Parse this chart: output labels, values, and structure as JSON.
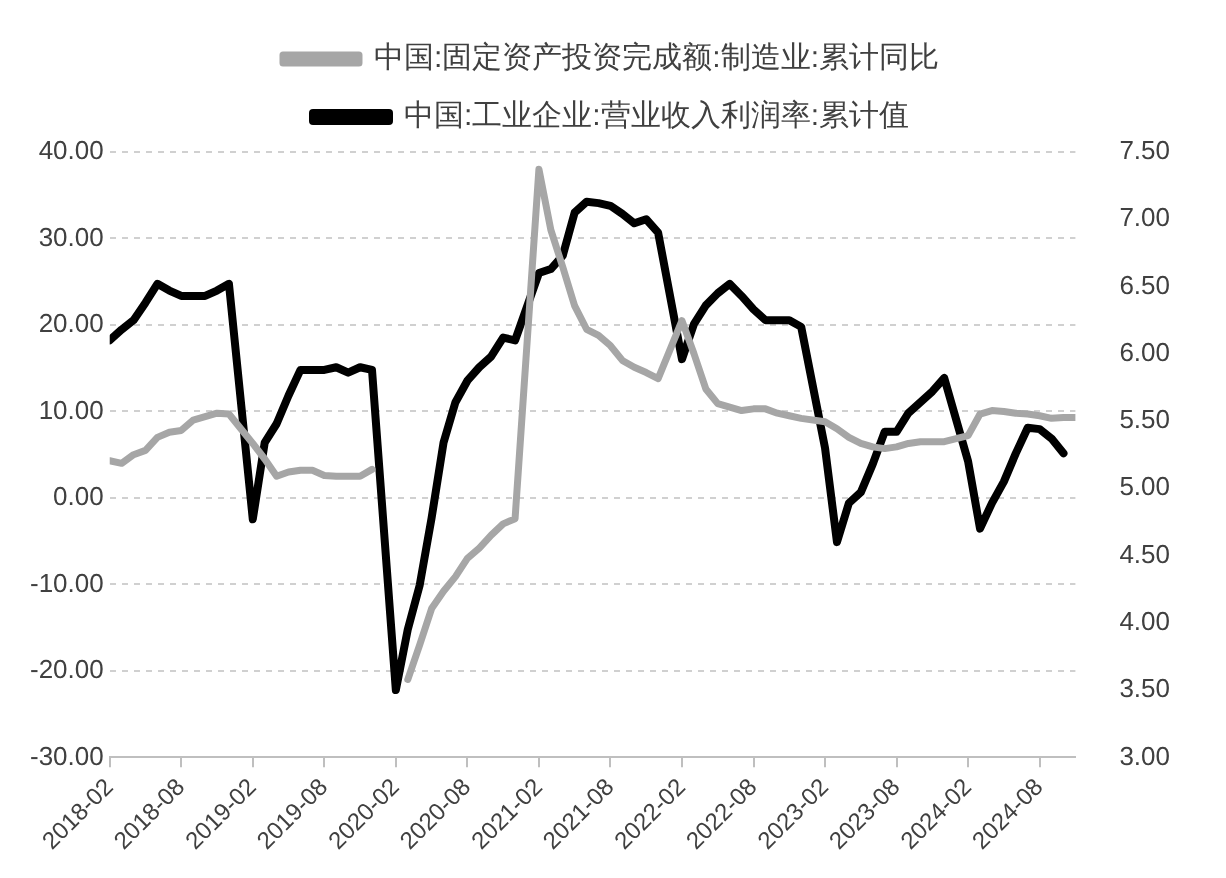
{
  "chart_data": {
    "type": "line",
    "series": [
      {
        "name": "中国:固定资产投资完成额:制造业:累计同比",
        "color": "#a6a6a6",
        "axis": "y",
        "x": [
          "2018-02",
          "2018-03",
          "2018-04",
          "2018-05",
          "2018-06",
          "2018-07",
          "2018-08",
          "2018-09",
          "2018-10",
          "2018-11",
          "2018-12",
          "2019-02",
          "2019-03",
          "2019-04",
          "2019-05",
          "2019-06",
          "2019-07",
          "2019-08",
          "2019-09",
          "2019-10",
          "2019-11",
          "2019-12",
          "2020-02",
          "2020-03",
          "2020-04",
          "2020-05",
          "2020-06",
          "2020-07",
          "2020-08",
          "2020-09",
          "2020-10",
          "2020-11",
          "2020-12",
          "2021-02",
          "2021-03",
          "2021-04",
          "2021-05",
          "2021-06",
          "2021-07",
          "2021-08",
          "2021-09",
          "2021-10",
          "2021-11",
          "2021-12",
          "2022-02",
          "2022-03",
          "2022-04",
          "2022-05",
          "2022-06",
          "2022-07",
          "2022-08",
          "2022-09",
          "2022-10",
          "2022-11",
          "2022-12",
          "2023-02",
          "2023-03",
          "2023-04",
          "2023-05",
          "2023-06",
          "2023-07",
          "2023-08",
          "2023-09",
          "2023-10",
          "2023-11",
          "2023-12",
          "2024-02",
          "2024-03",
          "2024-04",
          "2024-05",
          "2024-06",
          "2024-07",
          "2024-08",
          "2024-09",
          "2024-10",
          "2024-11"
        ],
        "values": [
          4.3,
          4.0,
          5.0,
          5.5,
          7.0,
          7.6,
          7.8,
          9.0,
          9.4,
          9.8,
          9.7,
          6.3,
          4.5,
          2.5,
          3.0,
          3.2,
          3.2,
          2.6,
          2.5,
          2.5,
          2.5,
          3.3,
          null,
          -21,
          -17,
          -12.8,
          -10.8,
          -9.1,
          -7,
          -5.8,
          -4.3,
          -3,
          -2.4,
          38,
          31,
          26.7,
          22.2,
          19.5,
          18.8,
          17.6,
          15.9,
          15.1,
          14.5,
          13.8,
          20.5,
          16.7,
          12.6,
          10.9,
          10.5,
          10.1,
          10.3,
          10.3,
          9.8,
          9.5,
          9.2,
          8.8,
          8.0,
          7.0,
          6.3,
          5.9,
          5.7,
          5.9,
          6.3,
          6.5,
          6.5,
          6.5,
          7.2,
          9.7,
          10.1,
          10,
          9.8,
          9.7,
          9.5,
          9.2,
          9.3,
          9.3
        ]
      },
      {
        "name": "中国:工业企业:营业收入利润率:累计值",
        "color": "#000000",
        "axis": "y2",
        "x": [
          "2018-02",
          "2018-03",
          "2018-04",
          "2018-05",
          "2018-06",
          "2018-07",
          "2018-08",
          "2018-09",
          "2018-10",
          "2018-11",
          "2018-12",
          "2019-02",
          "2019-03",
          "2019-04",
          "2019-05",
          "2019-06",
          "2019-07",
          "2019-08",
          "2019-09",
          "2019-10",
          "2019-11",
          "2019-12",
          "2020-02",
          "2020-03",
          "2020-04",
          "2020-05",
          "2020-06",
          "2020-07",
          "2020-08",
          "2020-09",
          "2020-10",
          "2020-11",
          "2020-12",
          "2021-02",
          "2021-03",
          "2021-04",
          "2021-05",
          "2021-06",
          "2021-07",
          "2021-08",
          "2021-09",
          "2021-10",
          "2021-11",
          "2021-12",
          "2022-02",
          "2022-03",
          "2022-04",
          "2022-05",
          "2022-06",
          "2022-07",
          "2022-08",
          "2022-09",
          "2022-10",
          "2022-11",
          "2022-12",
          "2023-02",
          "2023-03",
          "2023-04",
          "2023-05",
          "2023-06",
          "2023-07",
          "2023-08",
          "2023-09",
          "2023-10",
          "2023-11",
          "2023-12",
          "2024-02",
          "2024-03",
          "2024-04",
          "2024-05",
          "2024-06",
          "2024-07",
          "2024-08",
          "2024-09",
          "2024-10"
        ],
        "values": [
          6.1,
          6.18,
          6.25,
          6.38,
          6.52,
          6.47,
          6.43,
          6.43,
          6.43,
          6.47,
          6.52,
          4.77,
          5.34,
          5.48,
          5.69,
          5.88,
          5.88,
          5.88,
          5.9,
          5.86,
          5.9,
          5.88,
          3.5,
          3.95,
          4.28,
          4.78,
          5.34,
          5.64,
          5.8,
          5.9,
          5.98,
          6.12,
          6.1,
          6.6,
          6.63,
          6.73,
          7.05,
          7.13,
          7.12,
          7.1,
          7.04,
          6.97,
          7.0,
          6.9,
          5.96,
          6.22,
          6.36,
          6.45,
          6.52,
          6.43,
          6.33,
          6.25,
          6.25,
          6.25,
          6.2,
          5.3,
          4.6,
          4.89,
          4.97,
          5.18,
          5.42,
          5.42,
          5.56,
          5.64,
          5.72,
          5.82,
          5.2,
          4.7,
          4.89,
          5.05,
          5.26,
          5.45,
          5.44,
          5.37,
          5.26
        ]
      }
    ],
    "xlim": [
      "2018-02",
      "2024-11"
    ],
    "xticks": [
      "2018-02",
      "2018-08",
      "2019-02",
      "2019-08",
      "2020-02",
      "2020-08",
      "2021-02",
      "2021-08",
      "2022-02",
      "2022-08",
      "2023-02",
      "2023-08",
      "2024-02",
      "2024-08"
    ],
    "ylim": [
      -30,
      40
    ],
    "yticks": [
      {
        "value": -30,
        "label": "-30.00"
      },
      {
        "value": -20,
        "label": "-20.00"
      },
      {
        "value": -10,
        "label": "-10.00"
      },
      {
        "value": 0,
        "label": "0.00"
      },
      {
        "value": 10,
        "label": "10.00"
      },
      {
        "value": 20,
        "label": "20.00"
      },
      {
        "value": 30,
        "label": "30.00"
      },
      {
        "value": 40,
        "label": "40.00"
      }
    ],
    "y2lim": [
      3,
      7.5
    ],
    "y2ticks": [
      {
        "value": 3,
        "label": "3.00"
      },
      {
        "value": 3.5,
        "label": "3.50"
      },
      {
        "value": 4,
        "label": "4.00"
      },
      {
        "value": 4.5,
        "label": "4.50"
      },
      {
        "value": 5,
        "label": "5.00"
      },
      {
        "value": 5.5,
        "label": "5.50"
      },
      {
        "value": 6,
        "label": "6.00"
      },
      {
        "value": 6.5,
        "label": "6.50"
      },
      {
        "value": 7,
        "label": "7.00"
      },
      {
        "value": 7.5,
        "label": "7.50"
      }
    ],
    "grid": "y",
    "legend": "top",
    "marker": "none",
    "line_style": "solid"
  }
}
